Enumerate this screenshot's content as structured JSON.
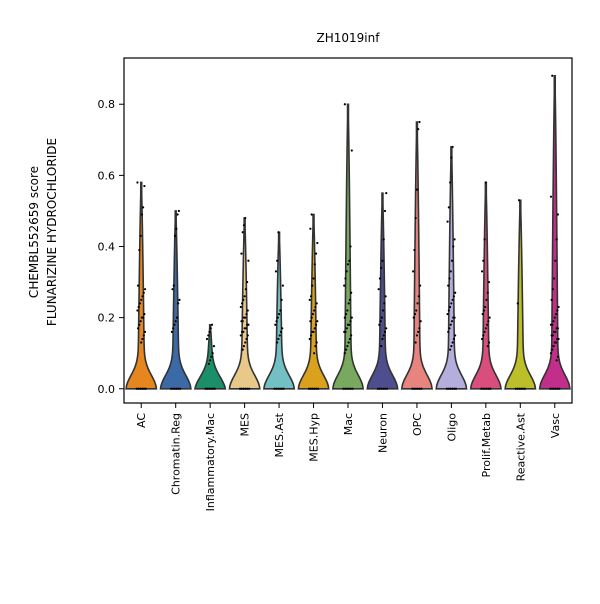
{
  "chart_data": {
    "type": "violin",
    "title": "ZH1019inf",
    "ylabel_lines": [
      "CHEMBL552659 score",
      "FLUNARIZINE HYDROCHLORIDE"
    ],
    "xlabel": "",
    "ylim": [
      -0.04,
      0.93
    ],
    "yticks": [
      0.0,
      0.2,
      0.4,
      0.6,
      0.8
    ],
    "ytick_labels": [
      "0.0",
      "0.2",
      "0.4",
      "0.6",
      "0.8"
    ],
    "grid": false,
    "categories": [
      "AC",
      "Chromatin.Reg",
      "Inflammatory.Mac",
      "MES",
      "MES.Ast",
      "MES.Hyp",
      "Mac",
      "Neuron",
      "OPC",
      "Oligo",
      "Prolif.Metab",
      "Reactive.Ast",
      "Vasc"
    ],
    "colors": [
      "#e6861f",
      "#3b6aa6",
      "#1b8f6a",
      "#e8c98a",
      "#72bfc4",
      "#d9a11c",
      "#78a95f",
      "#4e4e8f",
      "#e88480",
      "#b3aedc",
      "#d94e7c",
      "#bdbf2a",
      "#c22e8a"
    ],
    "series": [
      {
        "category": "AC",
        "max": 0.58,
        "points": [
          0.58,
          0.57,
          0.51,
          0.49,
          0.43,
          0.39,
          0.29,
          0.28,
          0.27,
          0.26,
          0.25,
          0.24,
          0.23,
          0.22,
          0.21,
          0.2,
          0.2,
          0.19,
          0.18,
          0.17,
          0.16,
          0.15,
          0.14,
          0.13
        ]
      },
      {
        "category": "Chromatin.Reg",
        "max": 0.5,
        "points": [
          0.5,
          0.49,
          0.45,
          0.43,
          0.29,
          0.28,
          0.25,
          0.24,
          0.2,
          0.19,
          0.18,
          0.17,
          0.16
        ]
      },
      {
        "category": "Inflammatory.Mac",
        "max": 0.18,
        "points": [
          0.18,
          0.17,
          0.16,
          0.15,
          0.14,
          0.12,
          0.1,
          0.09,
          0.08,
          0.07
        ]
      },
      {
        "category": "MES",
        "max": 0.48,
        "points": [
          0.48,
          0.46,
          0.44,
          0.38,
          0.36,
          0.3,
          0.28,
          0.26,
          0.25,
          0.24,
          0.23,
          0.22,
          0.21,
          0.2,
          0.2,
          0.19,
          0.19,
          0.18,
          0.18,
          0.17,
          0.17,
          0.16,
          0.16,
          0.15,
          0.15,
          0.14,
          0.13,
          0.12,
          0.11
        ]
      },
      {
        "category": "MES.Ast",
        "max": 0.44,
        "points": [
          0.44,
          0.36,
          0.33,
          0.29,
          0.25,
          0.22,
          0.21,
          0.2,
          0.19,
          0.18,
          0.17,
          0.16,
          0.15,
          0.14,
          0.13
        ]
      },
      {
        "category": "MES.Hyp",
        "max": 0.49,
        "points": [
          0.49,
          0.45,
          0.41,
          0.38,
          0.35,
          0.31,
          0.29,
          0.26,
          0.25,
          0.24,
          0.23,
          0.22,
          0.21,
          0.2,
          0.19,
          0.19,
          0.18,
          0.17,
          0.16,
          0.16,
          0.15,
          0.14,
          0.13,
          0.12,
          0.1
        ]
      },
      {
        "category": "Mac",
        "max": 0.8,
        "points": [
          0.8,
          0.67,
          0.4,
          0.36,
          0.35,
          0.33,
          0.31,
          0.29,
          0.27,
          0.25,
          0.24,
          0.22,
          0.21,
          0.2,
          0.2,
          0.19,
          0.18,
          0.18,
          0.17,
          0.16,
          0.16,
          0.15,
          0.14,
          0.13,
          0.12,
          0.11,
          0.1
        ]
      },
      {
        "category": "Neuron",
        "max": 0.55,
        "points": [
          0.55,
          0.5,
          0.42,
          0.36,
          0.34,
          0.31,
          0.28,
          0.26,
          0.24,
          0.22,
          0.2,
          0.19,
          0.18,
          0.17,
          0.16,
          0.15,
          0.14,
          0.12
        ]
      },
      {
        "category": "OPC",
        "max": 0.75,
        "points": [
          0.75,
          0.73,
          0.56,
          0.48,
          0.39,
          0.33,
          0.29,
          0.26,
          0.24,
          0.22,
          0.21,
          0.2,
          0.19,
          0.17,
          0.16,
          0.15,
          0.13
        ]
      },
      {
        "category": "Oligo",
        "max": 0.68,
        "points": [
          0.68,
          0.65,
          0.58,
          0.51,
          0.47,
          0.42,
          0.4,
          0.36,
          0.33,
          0.31,
          0.29,
          0.27,
          0.26,
          0.25,
          0.24,
          0.23,
          0.22,
          0.21,
          0.2,
          0.2,
          0.19,
          0.18,
          0.17,
          0.16,
          0.15,
          0.14,
          0.13,
          0.12,
          0.11
        ]
      },
      {
        "category": "Prolif.Metab",
        "max": 0.58,
        "points": [
          0.58,
          0.42,
          0.36,
          0.33,
          0.3,
          0.27,
          0.25,
          0.23,
          0.22,
          0.21,
          0.2,
          0.19,
          0.18,
          0.17,
          0.16,
          0.15,
          0.14,
          0.13,
          0.12
        ]
      },
      {
        "category": "Reactive.Ast",
        "max": 0.53,
        "points": [
          0.53,
          0.24
        ]
      },
      {
        "category": "Vasc",
        "max": 0.88,
        "points": [
          0.88,
          0.54,
          0.49,
          0.42,
          0.36,
          0.31,
          0.28,
          0.25,
          0.23,
          0.22,
          0.21,
          0.2,
          0.19,
          0.18,
          0.18,
          0.17,
          0.17,
          0.16,
          0.16,
          0.15,
          0.15,
          0.14,
          0.14,
          0.13,
          0.13,
          0.12,
          0.11,
          0.1,
          0.09,
          0.08
        ]
      }
    ]
  }
}
